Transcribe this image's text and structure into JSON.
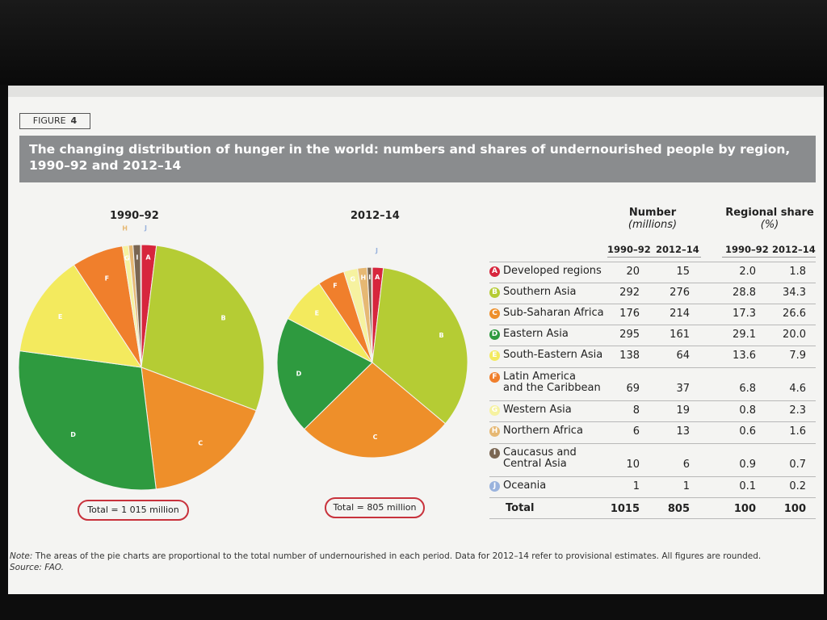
{
  "figure_label": {
    "prefix": "FIGURE",
    "number": "4"
  },
  "title": "The changing distribution of hunger in the world: numbers and shares of undernourished people by region, 1990–92 and 2012–14",
  "chart_data": [
    {
      "type": "pie",
      "title": "1990–92",
      "total_label": "Total = 1 015 million",
      "slices": [
        {
          "letter": "A",
          "region": "Developed regions",
          "value": 20,
          "share": 2.0
        },
        {
          "letter": "B",
          "region": "Southern Asia",
          "value": 292,
          "share": 28.8
        },
        {
          "letter": "C",
          "region": "Sub-Saharan Africa",
          "value": 176,
          "share": 17.3
        },
        {
          "letter": "D",
          "region": "Eastern Asia",
          "value": 295,
          "share": 29.1
        },
        {
          "letter": "E",
          "region": "South-Eastern Asia",
          "value": 138,
          "share": 13.6
        },
        {
          "letter": "F",
          "region": "Latin America and the Caribbean",
          "value": 69,
          "share": 6.8
        },
        {
          "letter": "G",
          "region": "Western Asia",
          "value": 8,
          "share": 0.8
        },
        {
          "letter": "H",
          "region": "Northern Africa",
          "value": 6,
          "share": 0.6
        },
        {
          "letter": "I",
          "region": "Caucasus and Central Asia",
          "value": 10,
          "share": 0.9
        },
        {
          "letter": "J",
          "region": "Oceania",
          "value": 1,
          "share": 0.1
        }
      ]
    },
    {
      "type": "pie",
      "title": "2012–14",
      "total_label": "Total = 805 million",
      "slices": [
        {
          "letter": "A",
          "region": "Developed regions",
          "value": 15,
          "share": 1.8
        },
        {
          "letter": "B",
          "region": "Southern Asia",
          "value": 276,
          "share": 34.3
        },
        {
          "letter": "C",
          "region": "Sub-Saharan Africa",
          "value": 214,
          "share": 26.6
        },
        {
          "letter": "D",
          "region": "Eastern Asia",
          "value": 161,
          "share": 20.0
        },
        {
          "letter": "E",
          "region": "South-Eastern Asia",
          "value": 64,
          "share": 7.9
        },
        {
          "letter": "F",
          "region": "Latin America and the Caribbean",
          "value": 37,
          "share": 4.6
        },
        {
          "letter": "G",
          "region": "Western Asia",
          "value": 19,
          "share": 2.3
        },
        {
          "letter": "H",
          "region": "Northern Africa",
          "value": 13,
          "share": 1.6
        },
        {
          "letter": "I",
          "region": "Caucasus and Central Asia",
          "value": 6,
          "share": 0.7
        },
        {
          "letter": "J",
          "region": "Oceania",
          "value": 1,
          "share": 0.2
        }
      ]
    }
  ],
  "colors": {
    "A": "#d7263d",
    "B": "#b5cc34",
    "C": "#ee8f2a",
    "D": "#2e9a3f",
    "E": "#f3ea5e",
    "F": "#f07f2c",
    "G": "#f6f2a0",
    "H": "#e6b873",
    "I": "#7a6652",
    "J": "#9ab3dd"
  },
  "table": {
    "number_header": "Number",
    "number_unit": "(millions)",
    "share_header": "Regional share",
    "share_unit": "(%)",
    "sub_headers": [
      "1990–92",
      "2012–14",
      "1990–92",
      "2012–14"
    ],
    "rows": [
      {
        "letter": "A",
        "label": "Developed regions",
        "n1": "20",
        "n2": "15",
        "s1": "2.0",
        "s2": "1.8"
      },
      {
        "letter": "B",
        "label": "Southern Asia",
        "n1": "292",
        "n2": "276",
        "s1": "28.8",
        "s2": "34.3"
      },
      {
        "letter": "C",
        "label": "Sub-Saharan Africa",
        "n1": "176",
        "n2": "214",
        "s1": "17.3",
        "s2": "26.6"
      },
      {
        "letter": "D",
        "label": "Eastern Asia",
        "n1": "295",
        "n2": "161",
        "s1": "29.1",
        "s2": "20.0"
      },
      {
        "letter": "E",
        "label": "South-Eastern Asia",
        "n1": "138",
        "n2": "64",
        "s1": "13.6",
        "s2": "7.9"
      },
      {
        "letter": "F",
        "label": "Latin America and the Caribbean",
        "label_lines": [
          "Latin America",
          "and the Caribbean"
        ],
        "n1": "69",
        "n2": "37",
        "s1": "6.8",
        "s2": "4.6"
      },
      {
        "letter": "G",
        "label": "Western Asia",
        "n1": "8",
        "n2": "19",
        "s1": "0.8",
        "s2": "2.3"
      },
      {
        "letter": "H",
        "label": "Northern Africa",
        "n1": "6",
        "n2": "13",
        "s1": "0.6",
        "s2": "1.6"
      },
      {
        "letter": "I",
        "label": "Caucasus and Central Asia",
        "label_lines": [
          "Caucasus and",
          "Central Asia"
        ],
        "n1": "10",
        "n2": "6",
        "s1": "0.9",
        "s2": "0.7"
      },
      {
        "letter": "J",
        "label": "Oceania",
        "n1": "1",
        "n2": "1",
        "s1": "0.1",
        "s2": "0.2"
      }
    ],
    "total": {
      "label": "Total",
      "n1": "1015",
      "n2": "805",
      "s1": "100",
      "s2": "100"
    }
  },
  "note": {
    "note_label": "Note:",
    "note_text": "The areas of the pie charts are proportional to the total number of undernourished in each period. Data for 2012–14 refer to provisional estimates. All figures are rounded.",
    "source_label": "Source:",
    "source_text": "FAO."
  }
}
